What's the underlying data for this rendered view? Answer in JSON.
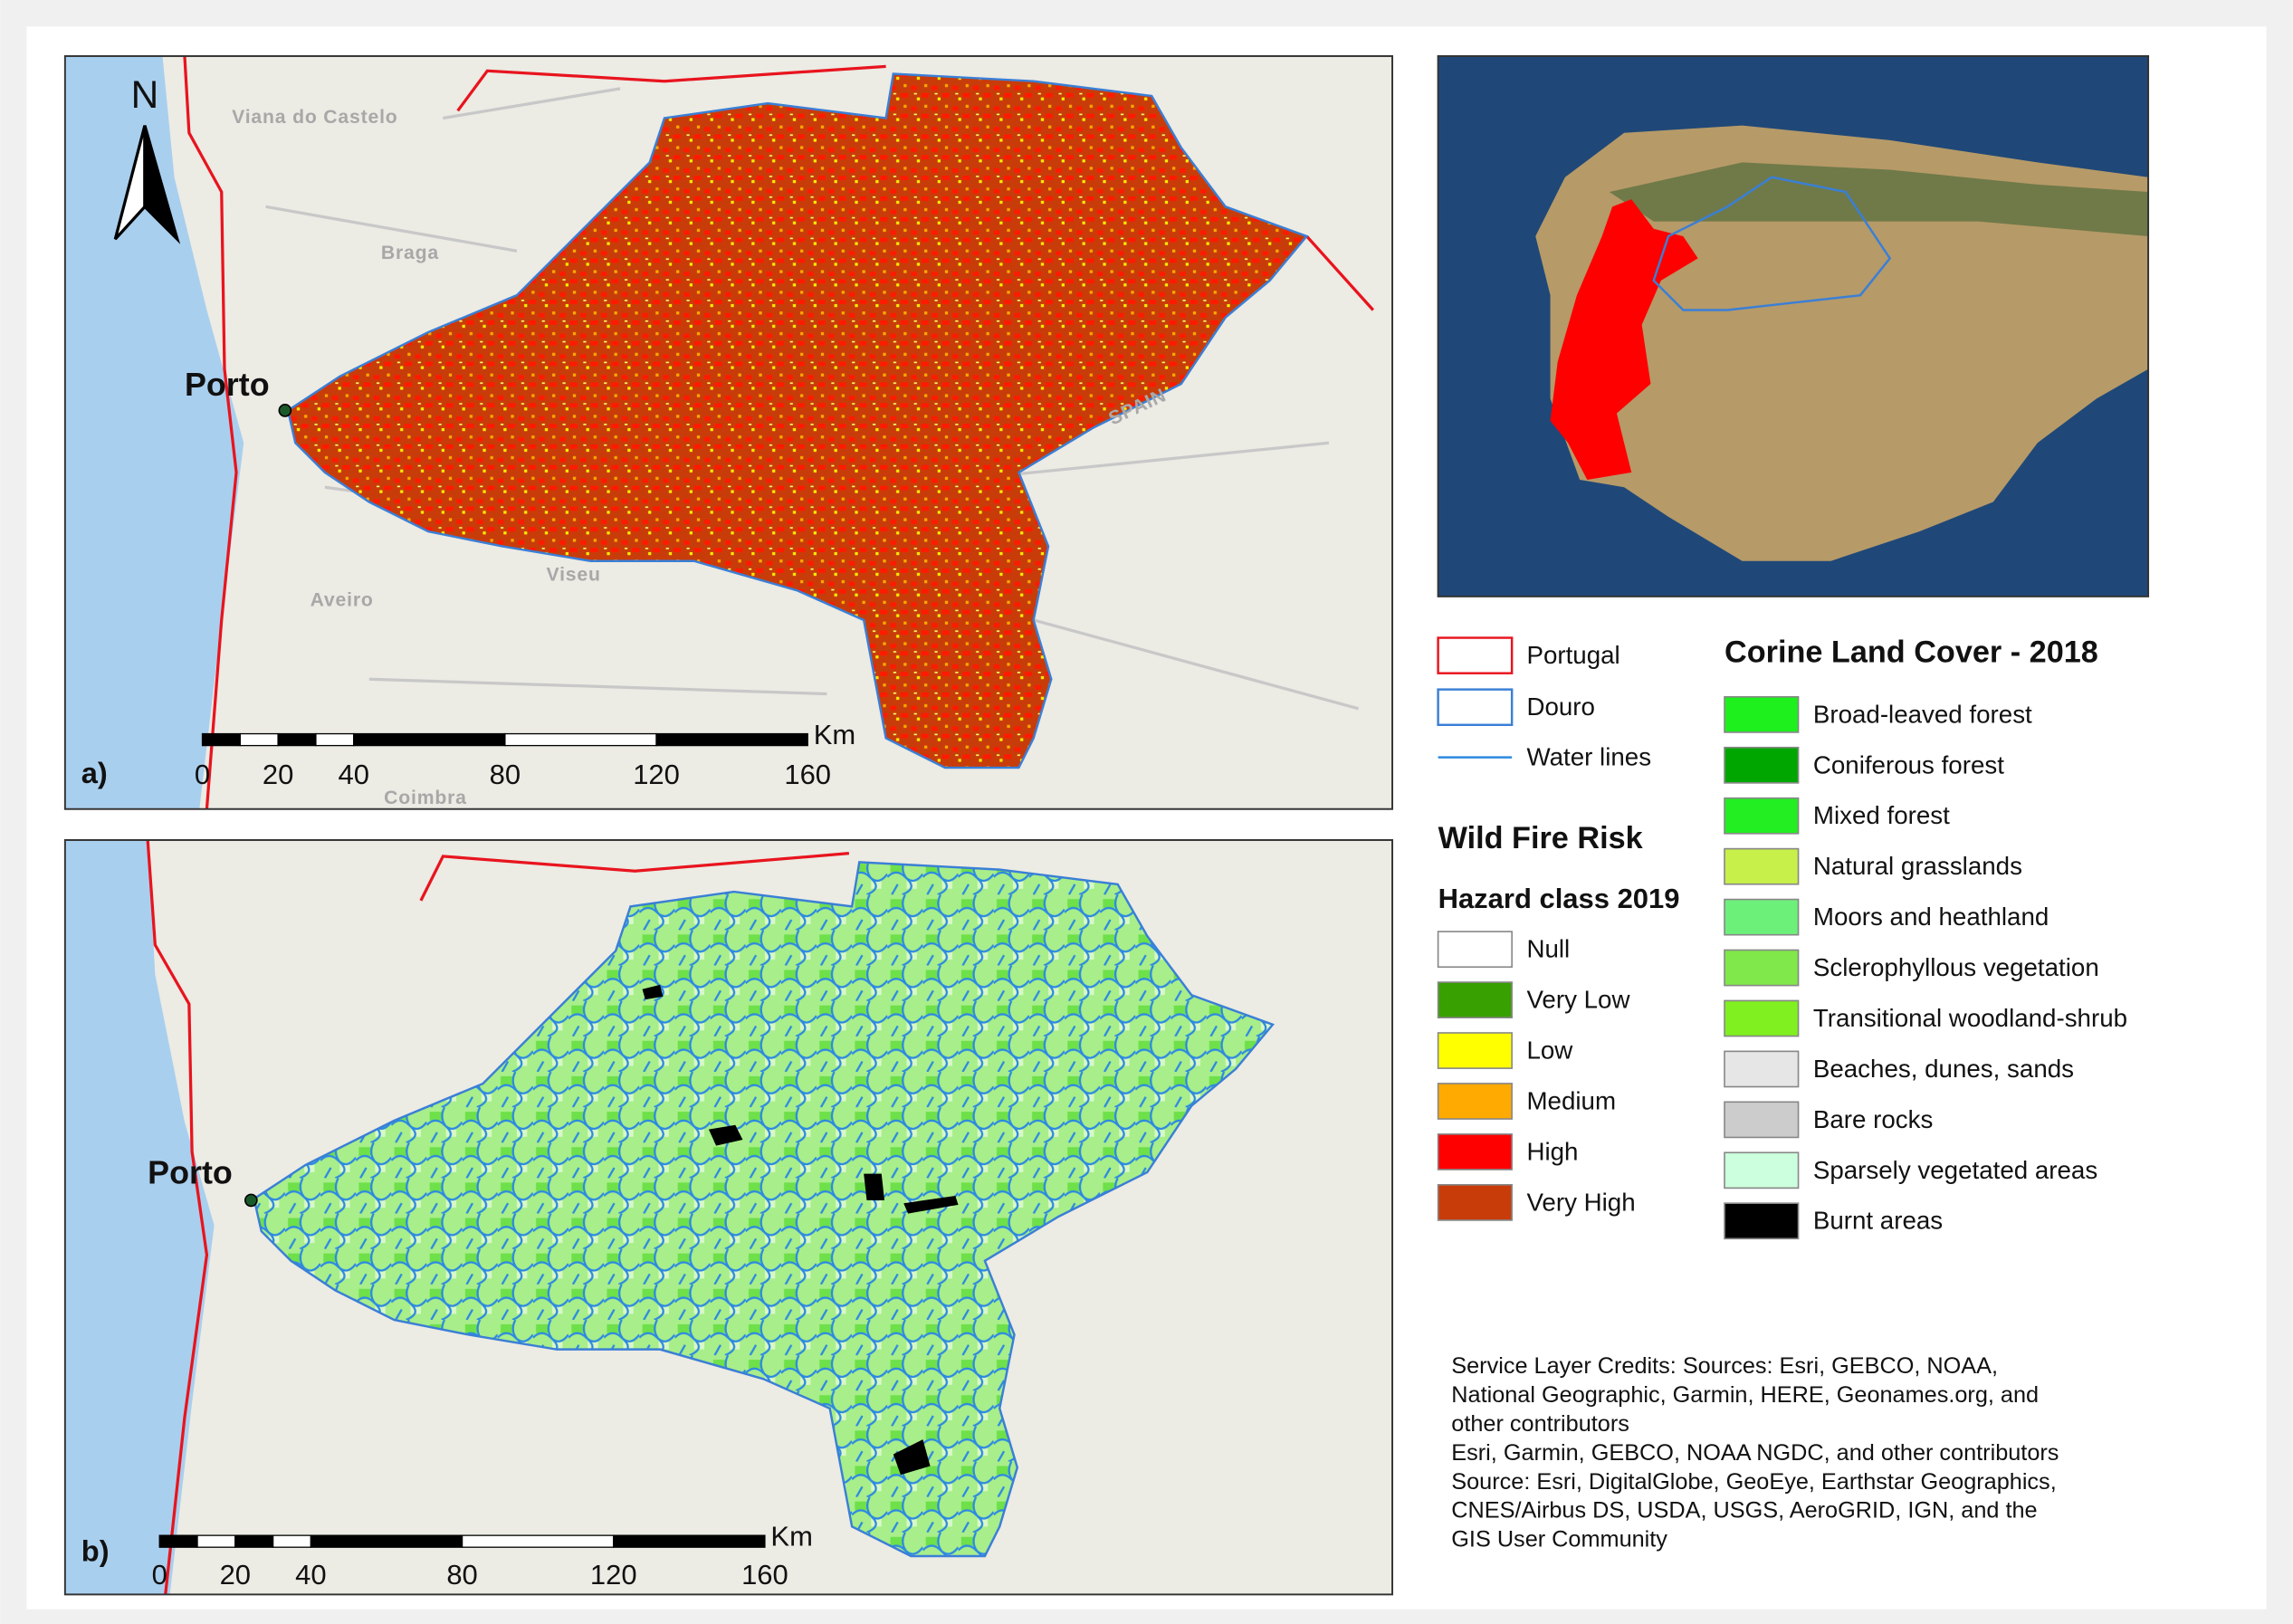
{
  "panels": [
    {
      "label": "a)",
      "city": "Porto",
      "north": "N",
      "places": [
        "Viana do Castelo",
        "Braga",
        "Viseu",
        "Aveiro",
        "Coimbra",
        "SPAIN"
      ],
      "scale": {
        "unit": "Km",
        "ticks": [
          0,
          20,
          40,
          80,
          120,
          160
        ]
      }
    },
    {
      "label": "b)",
      "city": "Porto",
      "scale": {
        "unit": "Km",
        "ticks": [
          0,
          20,
          40,
          80,
          120,
          160
        ]
      }
    }
  ],
  "boundaries": [
    {
      "label": "Portugal",
      "color": "#e8141e",
      "symbol": "outline"
    },
    {
      "label": "Douro",
      "color": "#3a7fd6",
      "symbol": "outline"
    },
    {
      "label": "Water lines",
      "color": "#2d8ae0",
      "symbol": "line"
    }
  ],
  "fire_risk": {
    "title": "Wild Fire Risk",
    "subtitle": "Hazard class 2019",
    "classes": [
      {
        "label": "Null",
        "color": "#ffffff"
      },
      {
        "label": "Very Low",
        "color": "#38a000"
      },
      {
        "label": "Low",
        "color": "#ffff00"
      },
      {
        "label": "Medium",
        "color": "#ffaa00"
      },
      {
        "label": "High",
        "color": "#ff0000"
      },
      {
        "label": "Very High",
        "color": "#c83c0a"
      }
    ]
  },
  "corine": {
    "title": "Corine Land Cover - 2018",
    "classes": [
      {
        "label": "Broad-leaved forest",
        "color": "#1ef01e"
      },
      {
        "label": "Coniferous forest",
        "color": "#00a600"
      },
      {
        "label": "Mixed forest",
        "color": "#22ee22"
      },
      {
        "label": "Natural grasslands",
        "color": "#c8f04a"
      },
      {
        "label": "Moors and heathland",
        "color": "#6cf07a"
      },
      {
        "label": "Sclerophyllous vegetation",
        "color": "#80e84a"
      },
      {
        "label": "Transitional woodland-shrub",
        "color": "#80f020"
      },
      {
        "label": "Beaches, dunes, sands",
        "color": "#e6e6e6"
      },
      {
        "label": "Bare rocks",
        "color": "#cccccc"
      },
      {
        "label": "Sparsely vegetated areas",
        "color": "#ccffdd"
      },
      {
        "label": "Burnt areas",
        "color": "#000000"
      }
    ]
  },
  "credits": [
    "Service Layer Credits: Sources: Esri, GEBCO, NOAA,",
    "National Geographic, Garmin, HERE, Geonames.org, and",
    "other contributors",
    "Esri, Garmin, GEBCO, NOAA NGDC, and other contributors",
    "Source: Esri, DigitalGlobe, GeoEye, Earthstar Geographics,",
    "CNES/Airbus DS, USDA, USGS, AeroGRID, IGN, and the",
    "GIS User Community"
  ]
}
